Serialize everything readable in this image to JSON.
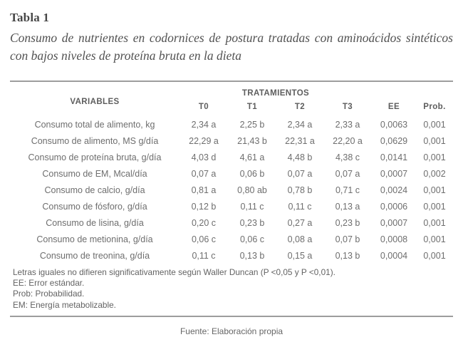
{
  "table_label": "Tabla 1",
  "subtitle": "Consumo de nutrientes en codornices de postura tratadas con aminoácidos sintéticos con bajos niveles de proteína bruta en la dieta",
  "table": {
    "variables_header": "VARIABLES",
    "group_header": "TRATAMIENTOS",
    "columns": [
      "T0",
      "T1",
      "T2",
      "T3",
      "EE",
      "Prob."
    ],
    "rows": [
      {
        "variable": "Consumo total de alimento, kg",
        "values": [
          "2,34 a",
          "2,25 b",
          "2,34 a",
          "2,33 a",
          "0,0063",
          "0,001"
        ]
      },
      {
        "variable": "Consumo de alimento, MS g/día",
        "values": [
          "22,29 a",
          "21,43 b",
          "22,31 a",
          "22,20 a",
          "0,0629",
          "0,001"
        ]
      },
      {
        "variable": "Consumo de proteína bruta, g/día",
        "values": [
          "4,03 d",
          "4,61 a",
          "4,48 b",
          "4,38 c",
          "0,0141",
          "0,001"
        ]
      },
      {
        "variable": "Consumo de EM, Mcal/día",
        "values": [
          "0,07 a",
          "0,06 b",
          "0,07 a",
          "0,07 a",
          "0,0007",
          "0,002"
        ]
      },
      {
        "variable": "Consumo de calcio, g/día",
        "values": [
          "0,81 a",
          "0,80 ab",
          "0,78 b",
          "0,71 c",
          "0,0024",
          "0,001"
        ]
      },
      {
        "variable": "Consumo de fósforo, g/día",
        "values": [
          "0,12 b",
          "0,11 c",
          "0,11 c",
          "0,13 a",
          "0,0006",
          "0,001"
        ]
      },
      {
        "variable": "Consumo de lisina, g/día",
        "values": [
          "0,20 c",
          "0,23 b",
          "0,27 a",
          "0,23 b",
          "0,0007",
          "0,001"
        ]
      },
      {
        "variable": "Consumo de metionina, g/día",
        "values": [
          "0,06 c",
          "0,06 c",
          "0,08 a",
          "0,07 b",
          "0,0008",
          "0,001"
        ]
      },
      {
        "variable": "Consumo de treonina, g/día",
        "values": [
          "0,11 c",
          "0,13 b",
          "0,15 a",
          "0,13 b",
          "0,0004",
          "0,001"
        ]
      }
    ]
  },
  "footnotes": [
    "Letras iguales no difieren significativamente según Waller Duncan (P <0,05 y P <0,01).",
    "EE: Error estándar.",
    "Prob: Probabilidad.",
    "EM: Energía metabolizable."
  ],
  "source": "Fuente: Elaboración propia",
  "colors": {
    "text_body": "#6e6e6e",
    "text_title": "#474747",
    "rule": "#9d9d9d"
  }
}
